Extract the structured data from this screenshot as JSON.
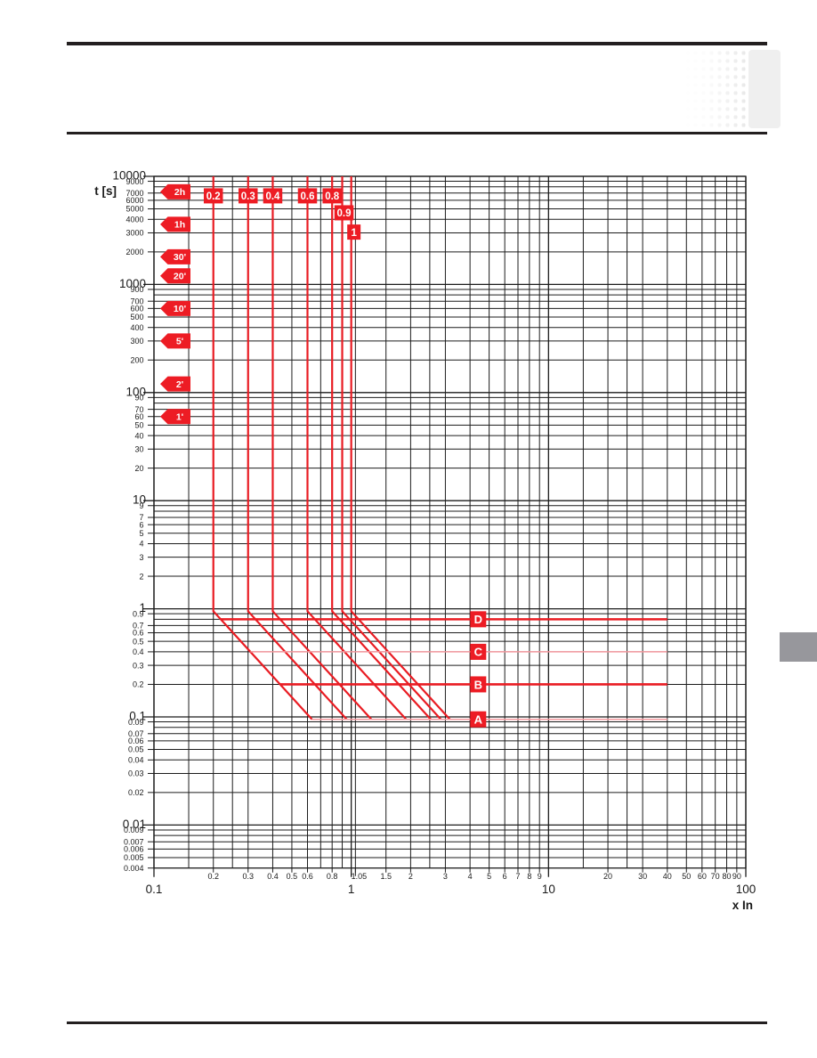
{
  "chart_data": {
    "type": "line",
    "title": "",
    "xlabel": "x In",
    "ylabel": "t [s]",
    "log_x": true,
    "log_y": true,
    "x_range": [
      0.1,
      100
    ],
    "y_range": [
      0.004,
      10000
    ],
    "x_major_ticks": [
      "0.1",
      "1",
      "10",
      "100"
    ],
    "x_minor_tick_labels": [
      "0.2",
      "0.3",
      "0.4",
      "0.5",
      "0.6",
      "0.8",
      "1.05",
      "1.5",
      "2",
      "3",
      "4",
      "5",
      "6",
      "7",
      "8",
      "9",
      "20",
      "30",
      "40",
      "50",
      "60",
      "70",
      "80",
      "90"
    ],
    "y_major_ticks": [
      "10000",
      "1000",
      "100",
      "10",
      "1",
      "0.1",
      "0.01"
    ],
    "y_minor_tick_labels": [
      "9000",
      "7000",
      "6000",
      "5000",
      "4000",
      "3000",
      "2000",
      "900",
      "700",
      "600",
      "500",
      "400",
      "300",
      "200",
      "90",
      "70",
      "60",
      "50",
      "40",
      "30",
      "20",
      "9",
      "7",
      "6",
      "5",
      "4",
      "3",
      "2",
      "0.9",
      "0.7",
      "0.6",
      "0.5",
      "0.4",
      "0.3",
      "0.2",
      "0.09",
      "0.07",
      "0.06",
      "0.05",
      "0.04",
      "0.03",
      "0.02",
      "0.009",
      "0.007",
      "0.006",
      "0.005",
      "0.004"
    ],
    "grid": {
      "x_minor_multipliers": [
        1.5,
        2,
        2.5,
        3,
        4,
        5,
        6,
        7,
        8,
        9
      ],
      "x_special_lines": [
        1.05
      ],
      "x_major_lines": [
        0.1,
        1,
        10,
        100
      ],
      "y_minor_multipliers": [
        2,
        3,
        4,
        5,
        6,
        7,
        8,
        9
      ],
      "y_major_lines": [
        10000,
        1000,
        100,
        10,
        1,
        0.1,
        0.01
      ],
      "y_bottom_decade_values": [
        0.009,
        0.008,
        0.007,
        0.006,
        0.005,
        0.004
      ]
    },
    "curves": {
      "characteristic": "I2t_constant_slope_-2",
      "vertical_top_t": 10000,
      "bend_t": 0.95,
      "end_t": 0.095,
      "end_x_multiplier": 3.162,
      "list": [
        {
          "label": "0.2",
          "setting": 0.2,
          "label_t": 6600,
          "label_dx": 0
        },
        {
          "label": "0.3",
          "setting": 0.3,
          "label_t": 6600,
          "label_dx": 0
        },
        {
          "label": "0.4",
          "setting": 0.4,
          "label_t": 6600,
          "label_dx": 0
        },
        {
          "label": "0.6",
          "setting": 0.6,
          "label_t": 6600,
          "label_dx": 0
        },
        {
          "label": "0.8",
          "setting": 0.8,
          "label_t": 6600,
          "label_dx": 0
        },
        {
          "label": "0.9",
          "setting": 0.9,
          "label_t": 4600,
          "label_dx": 2
        },
        {
          "label": "1",
          "setting": 1.0,
          "label_t": 3050,
          "label_dx": 3
        }
      ]
    },
    "time_bands": {
      "label_x": 4.4,
      "x_end": 40,
      "list": [
        {
          "label": "D",
          "t": 0.8,
          "weight": "heavy"
        },
        {
          "label": "C",
          "t": 0.4,
          "weight": "light"
        },
        {
          "label": "B",
          "t": 0.2,
          "weight": "heavy"
        },
        {
          "label": "A",
          "t": 0.095,
          "weight": "light"
        }
      ]
    },
    "time_markers": [
      {
        "label": "2h",
        "t": 7200
      },
      {
        "label": "1h",
        "t": 3600
      },
      {
        "label": "30'",
        "t": 1800
      },
      {
        "label": "20'",
        "t": 1200
      },
      {
        "label": "10'",
        "t": 600
      },
      {
        "label": "5'",
        "t": 300
      },
      {
        "label": "2'",
        "t": 120
      },
      {
        "label": "1'",
        "t": 60
      }
    ],
    "colors": {
      "red": "#e91c23",
      "red_light": "#f59ba0",
      "label_bg": "#ed1c24",
      "label_text": "#ffffff",
      "grid": "#1c1c1c",
      "text": "#1a1a1a"
    }
  },
  "labels": {
    "y_axis_title": "t [s]",
    "x_axis_title": "x In"
  }
}
